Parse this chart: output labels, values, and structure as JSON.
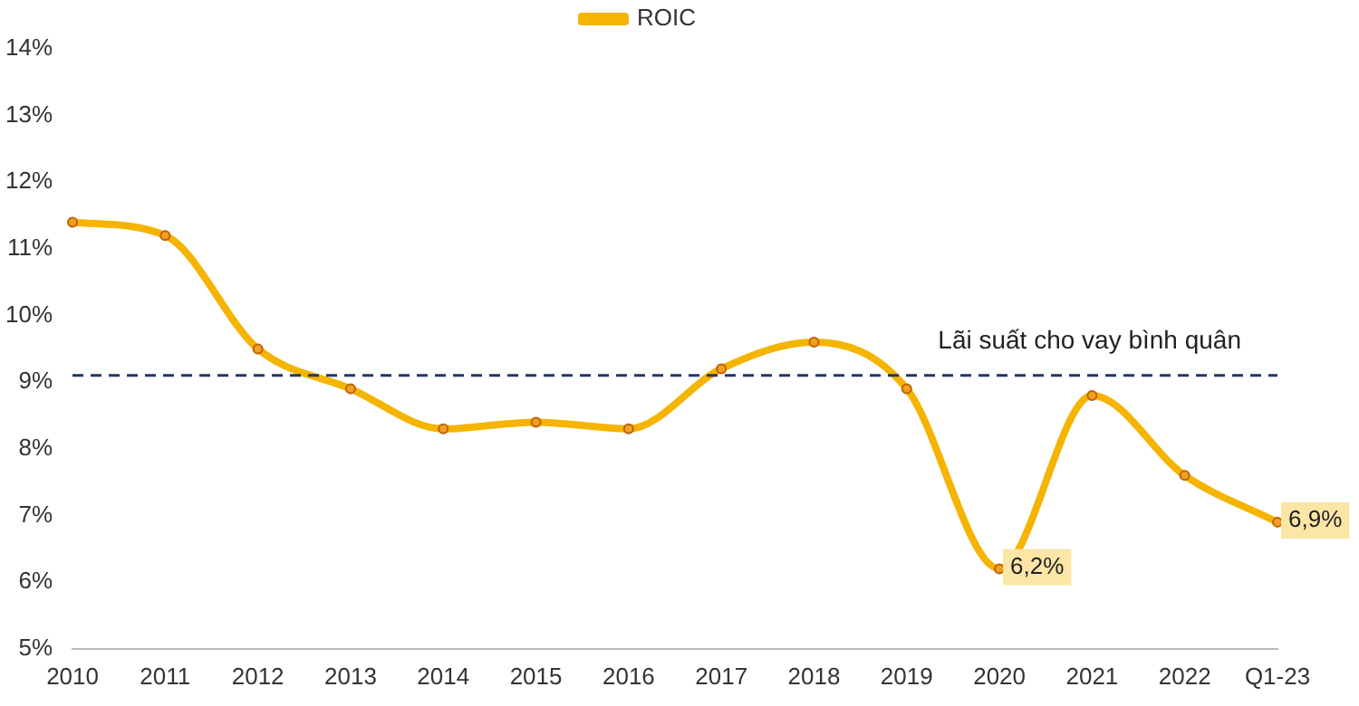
{
  "chart_data": {
    "type": "line",
    "categories": [
      "2010",
      "2011",
      "2012",
      "2013",
      "2014",
      "2015",
      "2016",
      "2017",
      "2018",
      "2019",
      "2020",
      "2021",
      "2022",
      "Q1-23"
    ],
    "series": [
      {
        "name": "ROIC",
        "color": "#f5b400",
        "values": [
          11.4,
          11.2,
          9.5,
          8.9,
          8.3,
          8.4,
          8.3,
          9.2,
          9.6,
          8.9,
          6.2,
          8.8,
          7.6,
          6.9
        ],
        "value_labels": [
          null,
          null,
          null,
          null,
          null,
          null,
          null,
          null,
          null,
          null,
          "6,2%",
          null,
          null,
          "6,9%"
        ]
      }
    ],
    "ylim": [
      5,
      14
    ],
    "yticks": [
      {
        "value": 5,
        "label": "5%"
      },
      {
        "value": 6,
        "label": "6%"
      },
      {
        "value": 7,
        "label": "7%"
      },
      {
        "value": 8,
        "label": "8%"
      },
      {
        "value": 9,
        "label": "9%"
      },
      {
        "value": 10,
        "label": "10%"
      },
      {
        "value": 11,
        "label": "11%"
      },
      {
        "value": 12,
        "label": "12%"
      },
      {
        "value": 13,
        "label": "13%"
      },
      {
        "value": 14,
        "label": "14%"
      }
    ],
    "ref_lines": [
      {
        "axis": "y",
        "value": 9.1,
        "label": "Lãi suất cho vay bình quân",
        "color": "#1f3864",
        "line_style": "dashed"
      }
    ],
    "grid": false,
    "legend": "top",
    "marker": "circle"
  }
}
